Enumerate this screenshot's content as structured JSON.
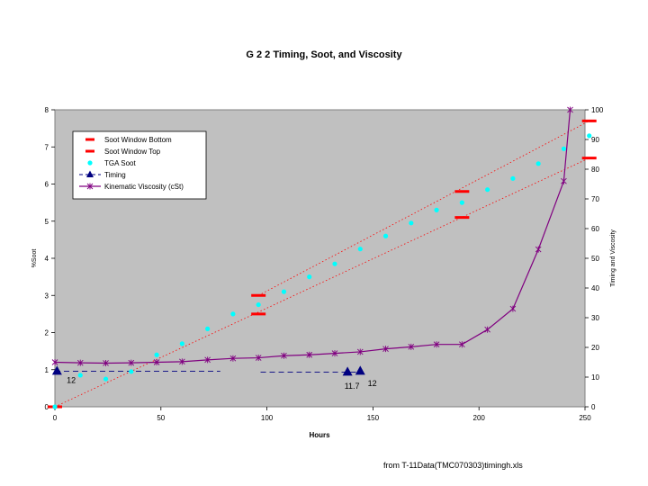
{
  "chart_data": {
    "type": "scatter",
    "title": "G 2 2 Timing, Soot, and Viscosity",
    "xlabel": "Hours",
    "ylabel": "%Soot",
    "y2label": "Timing and Viscosity",
    "xlim": [
      0,
      250
    ],
    "ylim": [
      0,
      8
    ],
    "y2lim": [
      0,
      100
    ],
    "xticks": [
      "0",
      "50",
      "100",
      "150",
      "200",
      "250"
    ],
    "yticks": [
      "0",
      "1",
      "2",
      "3",
      "4",
      "5",
      "6",
      "7",
      "8"
    ],
    "y2ticks": [
      "0",
      "10",
      "20",
      "30",
      "40",
      "50",
      "60",
      "70",
      "80",
      "90",
      "100"
    ],
    "legend": [
      "Soot Window Bottom",
      "Soot Window Top",
      "TGA Soot",
      "Timing",
      "Kinematic Viscosity (cSt)"
    ],
    "series": [
      {
        "name": "Soot Window Bottom",
        "axis": "left",
        "color": "#ff0000",
        "x": [
          0,
          96,
          192,
          252
        ],
        "y": [
          0.0,
          2.5,
          5.1,
          6.7
        ]
      },
      {
        "name": "Soot Window Top",
        "axis": "left",
        "color": "#ff0000",
        "x": [
          96,
          192,
          252
        ],
        "y": [
          3.0,
          5.8,
          7.7
        ]
      },
      {
        "name": "TGA Soot",
        "axis": "left",
        "color": "#00ffff",
        "x": [
          0,
          12,
          24,
          36,
          48,
          60,
          72,
          84,
          96,
          108,
          120,
          132,
          144,
          156,
          168,
          180,
          192,
          204,
          216,
          228,
          240,
          252
        ],
        "y": [
          0.0,
          0.85,
          0.75,
          0.95,
          1.4,
          1.7,
          2.1,
          2.5,
          2.75,
          3.1,
          3.5,
          3.85,
          4.25,
          4.6,
          4.95,
          5.3,
          5.5,
          5.85,
          6.15,
          6.55,
          6.95,
          7.3
        ]
      },
      {
        "name": "Timing",
        "axis": "right",
        "color": "#000080",
        "x": [
          1,
          138,
          144
        ],
        "y": [
          12,
          11.7,
          12
        ]
      },
      {
        "name": "Kinematic Viscosity (cSt)",
        "axis": "right",
        "color": "#800080",
        "x": [
          0,
          12,
          24,
          36,
          48,
          60,
          72,
          84,
          96,
          108,
          120,
          132,
          144,
          156,
          168,
          180,
          192,
          204,
          216,
          228,
          240,
          243
        ],
        "y": [
          15,
          14.8,
          14.7,
          14.8,
          15,
          15.2,
          15.8,
          16.3,
          16.5,
          17.2,
          17.5,
          18,
          18.5,
          19.5,
          20.2,
          21,
          21,
          26,
          33,
          53,
          76,
          100
        ]
      }
    ],
    "trend_lines": [
      {
        "name": "upper window trend",
        "x": [
          96,
          252
        ],
        "y": [
          3.0,
          7.7
        ]
      },
      {
        "name": "lower window trend",
        "x": [
          0,
          252
        ],
        "y": [
          0.0,
          6.7
        ]
      },
      {
        "name": "timing dashed segment 1",
        "x": [
          0,
          78
        ],
        "y": [
          12,
          12
        ]
      },
      {
        "name": "timing dashed segment 2",
        "x": [
          97,
          144
        ],
        "y": [
          11.7,
          11.7
        ]
      }
    ],
    "annotations": [
      {
        "text": "12",
        "x": 3,
        "y2": 8
      },
      {
        "text": "11.7",
        "x": 134,
        "y2": 6
      },
      {
        "text": "12",
        "x": 145,
        "y2": 7
      }
    ]
  },
  "source_note": "from T-11Data(TMC070303)timingh.xls",
  "colors": {
    "plot_bg": "#c0c0c0",
    "window": "#ff0000",
    "tga": "#00ffff",
    "timing": "#000080",
    "viscosity": "#800080",
    "trend": "#ff0000"
  }
}
